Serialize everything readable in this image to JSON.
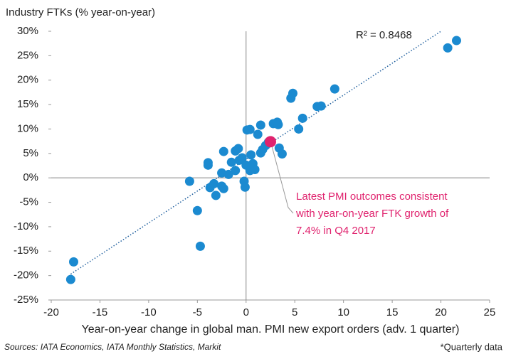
{
  "chart_data": {
    "type": "scatter",
    "y_label": "Industry FTKs (% year-on-year)",
    "x_label": "Year-on-year change in global man. PMI new export orders (adv. 1 quarter)",
    "source": "Sources: IATA Economics, IATA Monthly Statistics, Markit",
    "footnote": "*Quarterly data",
    "r_squared_label": "R² = 0.8468",
    "annotation": [
      "Latest PMI outcomes consistent",
      "with year-on-year FTK growth of",
      "7.4% in Q4 2017"
    ],
    "xlim": [
      -20,
      25
    ],
    "ylim": [
      -25,
      30
    ],
    "xticks": [
      -20,
      -15,
      -10,
      -5,
      0,
      5,
      10,
      15,
      20,
      25
    ],
    "yticks": [
      {
        "value": -25,
        "label": "-25%"
      },
      {
        "value": -20,
        "label": "-20%"
      },
      {
        "value": -15,
        "label": "-15%"
      },
      {
        "value": -10,
        "label": "-10%"
      },
      {
        "value": -5,
        "label": "-5%"
      },
      {
        "value": 0,
        "label": "0%"
      },
      {
        "value": 5,
        "label": "5%"
      },
      {
        "value": 10,
        "label": "10%"
      },
      {
        "value": 15,
        "label": "15%"
      },
      {
        "value": 20,
        "label": "20%"
      },
      {
        "value": 25,
        "label": "25%"
      },
      {
        "value": 30,
        "label": "30%"
      }
    ],
    "trendline": {
      "color": "#1f5f9e",
      "x": [
        -18,
        20
      ],
      "y": [
        -19.7,
        30
      ]
    },
    "series": [
      {
        "color": "#1b8ad0",
        "x": [
          -18.0,
          -17.7,
          -5.8,
          -5.0,
          -4.7,
          -3.9,
          -3.9,
          -3.7,
          -3.3,
          -3.1,
          -2.5,
          -2.5,
          -2.3,
          -2.3,
          -1.8,
          -1.5,
          -1.1,
          -0.8,
          -1.1,
          -0.7,
          -0.4,
          -0.2,
          -0.1,
          0.1,
          0.4,
          0.0,
          0.4,
          0.5,
          0.7,
          0.9,
          1.2,
          1.5,
          1.5,
          2.0,
          1.7,
          2.3,
          2.8,
          3.2,
          3.3,
          3.4,
          3.7,
          4.6,
          4.8,
          5.4,
          5.8,
          7.3,
          7.7,
          9.1,
          20.7,
          21.6
        ],
        "values": [
          -20.8,
          -17.2,
          -0.7,
          -6.7,
          -14.0,
          2.6,
          3.1,
          -2.0,
          -1.2,
          -3.6,
          -1.7,
          1.0,
          5.4,
          -2.2,
          0.7,
          3.2,
          5.5,
          6.0,
          1.5,
          3.6,
          4.1,
          -0.7,
          -1.9,
          9.8,
          9.9,
          2.6,
          1.5,
          4.7,
          2.9,
          1.7,
          8.9,
          10.8,
          5.1,
          6.6,
          5.8,
          7.3,
          11.1,
          11.4,
          10.9,
          6.1,
          4.9,
          16.3,
          17.3,
          10.0,
          12.2,
          14.6,
          14.7,
          18.2,
          26.6,
          28.1
        ]
      },
      {
        "color": "#e0236e",
        "x": [
          2.5
        ],
        "values": [
          7.4
        ]
      }
    ]
  }
}
